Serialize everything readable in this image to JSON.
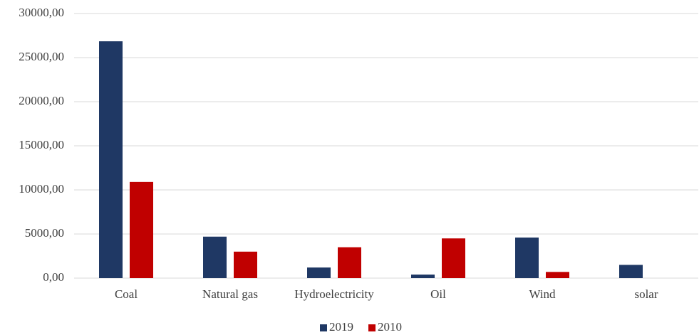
{
  "chart_data": {
    "type": "bar",
    "categories": [
      "Coal",
      "Natural gas",
      "Hydroelectricity",
      "Oil",
      "Wind",
      "solar"
    ],
    "series": [
      {
        "name": "2019",
        "color": "#1f3864",
        "values": [
          26850,
          4700,
          1200,
          400,
          4600,
          1500
        ]
      },
      {
        "name": "2010",
        "color": "#c00000",
        "values": [
          10900,
          3000,
          3500,
          4500,
          700,
          0
        ]
      }
    ],
    "ylim": [
      0,
      30000
    ],
    "yticks": [
      {
        "value": 0,
        "label": "0,00"
      },
      {
        "value": 5000,
        "label": "5000,00"
      },
      {
        "value": 10000,
        "label": "10000,00"
      },
      {
        "value": 15000,
        "label": "15000,00"
      },
      {
        "value": 20000,
        "label": "20000,00"
      },
      {
        "value": 25000,
        "label": "25000,00"
      },
      {
        "value": 30000,
        "label": "30000,00"
      }
    ],
    "grid": true,
    "legend": "bottom"
  }
}
